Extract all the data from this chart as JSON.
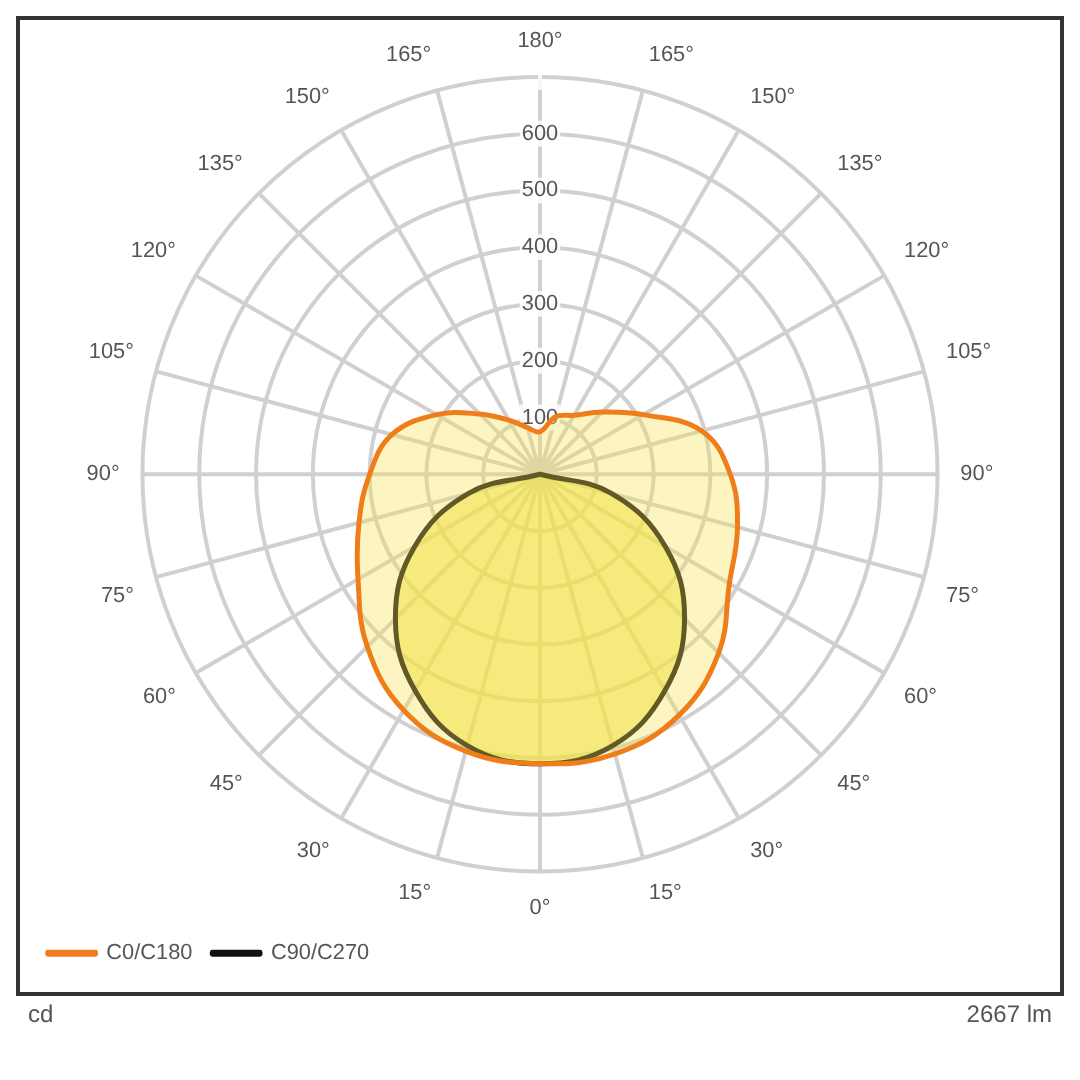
{
  "chart_data": {
    "type": "radar",
    "categories": [
      "180°",
      "165°",
      "150°",
      "135°",
      "120°",
      "105°",
      "90°",
      "75°",
      "60°",
      "45°",
      "30°",
      "15°",
      "0°",
      "15°",
      "30°",
      "45°",
      "60°",
      "75°",
      "90°",
      "105°",
      "120°",
      "135°",
      "150°",
      "165°"
    ],
    "series": [
      {
        "name": "C0/C180",
        "color": "#ee7d1a",
        "values": [
          75,
          105,
          120,
          155,
          210,
          295,
          335,
          360,
          385,
          445,
          490,
          510,
          510,
          505,
          480,
          430,
          370,
          330,
          300,
          270,
          210,
          150,
          110,
          85
        ]
      },
      {
        "name": "C90/C270",
        "color": "#111111",
        "values": [
          0,
          0,
          0,
          0,
          0,
          0,
          0,
          130,
          255,
          360,
          440,
          495,
          510,
          495,
          440,
          360,
          255,
          130,
          0,
          0,
          0,
          0,
          0,
          0
        ]
      }
    ],
    "ylim": [
      0,
      700
    ],
    "yticks": [
      100,
      200,
      300,
      400,
      500,
      600
    ],
    "grid": true,
    "legend": "bottom left",
    "marker": "none",
    "line_style": "solid",
    "annotations": [
      "cd",
      "2667 lm"
    ]
  }
}
